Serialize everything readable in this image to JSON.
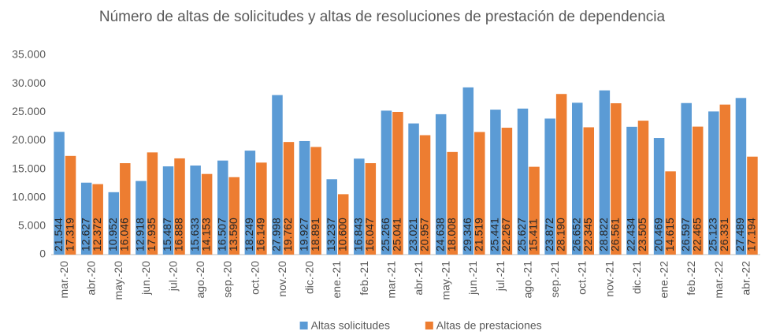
{
  "chart_data": {
    "type": "bar",
    "title": "Número de altas de solicitudes y altas de resoluciones de prestación de dependencia",
    "categories": [
      "mar.-20",
      "abr.-20",
      "may.-20",
      "jun.-20",
      "jul.-20",
      "ago.-20",
      "sep.-20",
      "oct.-20",
      "nov.-20",
      "dic.-20",
      "ene.-21",
      "feb.-21",
      "mar.-21",
      "abr.-21",
      "may.-21",
      "jun.-21",
      "jul.-21",
      "ago.-21",
      "sep.-21",
      "oct.-21",
      "nov.-21",
      "dic.-21",
      "ene.-22",
      "feb.-22",
      "mar.-22",
      "abr.-22"
    ],
    "series": [
      {
        "name": "Altas solicitudes",
        "color": "#5b9bd5",
        "values": [
          21544,
          12627,
          10952,
          12918,
          15487,
          15633,
          16507,
          18249,
          27998,
          19927,
          13237,
          16843,
          25266,
          23021,
          24638,
          29346,
          25441,
          25627,
          23872,
          26652,
          28822,
          22434,
          20469,
          26597,
          25123,
          27489
        ],
        "value_labels": [
          "21.544",
          "12.627",
          "10.952",
          "12.918",
          "15.487",
          "15.633",
          "16.507",
          "18.249",
          "27.998",
          "19.927",
          "13.237",
          "16.843",
          "25.266",
          "23.021",
          "24.638",
          "29.346",
          "25.441",
          "25.627",
          "23.872",
          "26.652",
          "28.822",
          "22.434",
          "20.469",
          "26.597",
          "25.123",
          "27.489"
        ]
      },
      {
        "name": "Altas de prestaciones",
        "color": "#ed7d31",
        "values": [
          17319,
          12372,
          16046,
          17935,
          16888,
          14153,
          13590,
          16149,
          19762,
          18891,
          10600,
          16047,
          25041,
          20957,
          18008,
          21519,
          22267,
          15411,
          28190,
          22345,
          26561,
          23505,
          14615,
          22465,
          26331,
          17194
        ],
        "value_labels": [
          "17.319",
          "12.372",
          "16.046",
          "17.935",
          "16.888",
          "14.153",
          "13.590",
          "16.149",
          "19.762",
          "18.891",
          "10.600",
          "16.047",
          "25.041",
          "20.957",
          "18.008",
          "21.519",
          "22.267",
          "15.411",
          "28.190",
          "22.345",
          "26.561",
          "23.505",
          "14.615",
          "22.465",
          "26.331",
          "17.194"
        ]
      }
    ],
    "ylim": [
      0,
      35000
    ],
    "yticks": [
      0,
      {
        "value": 5000,
        "label": "5.000"
      },
      {
        "value": 10000,
        "label": "10.000"
      },
      {
        "value": 15000,
        "label": "15.000"
      },
      {
        "value": 20000,
        "label": "20.000"
      },
      {
        "value": 25000,
        "label": "25.000"
      },
      {
        "value": 30000,
        "label": "30.000"
      },
      {
        "value": 35000,
        "label": "35.000"
      }
    ],
    "grid": false,
    "legend": "bottom"
  }
}
